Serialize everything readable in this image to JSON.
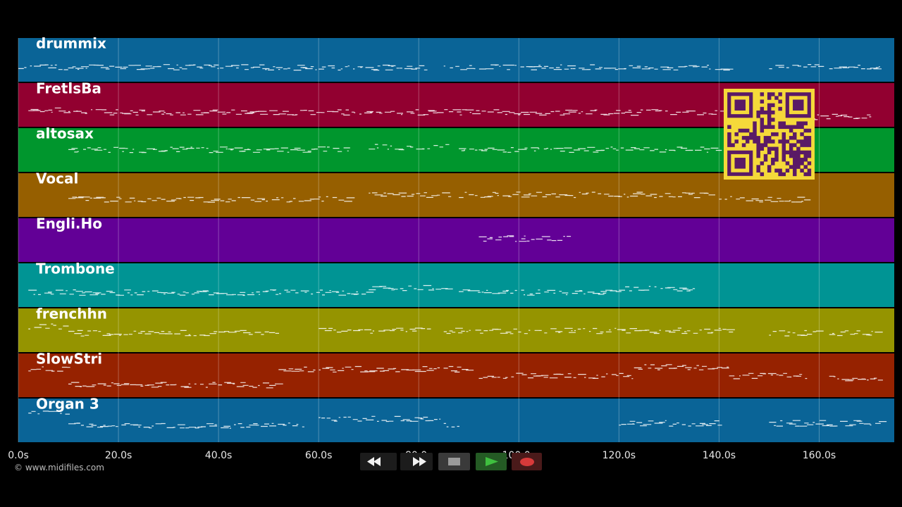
{
  "tracks": [
    {
      "name": "drummix",
      "color": "#0a6497"
    },
    {
      "name": "FretlsBa",
      "color": "#920030"
    },
    {
      "name": "altosax",
      "color": "#00962d"
    },
    {
      "name": "Vocal",
      "color": "#965f00"
    },
    {
      "name": "Engli.Ho",
      "color": "#620096"
    },
    {
      "name": "Trombone",
      "color": "#009494"
    },
    {
      "name": "frenchhn",
      "color": "#959400"
    },
    {
      "name": "SlowStri",
      "color": "#962200"
    },
    {
      "name": "Organ 3",
      "color": "#0a6497"
    }
  ],
  "time_axis": {
    "unit": "s",
    "max_seconds": 175,
    "ticks": [
      "0.0s",
      "20.0s",
      "40.0s",
      "60.0s",
      "80.0s",
      "100.0s",
      "120.0s",
      "140.0s",
      "160.0s"
    ]
  },
  "copyright": "© www.midifiles.com",
  "transport": {
    "rewind": "rewind-icon",
    "forward": "fast-forward-icon",
    "stop": "stop-icon",
    "play": "play-icon",
    "record": "record-icon",
    "play_color": "#3fbf3f",
    "record_color": "#d83a3a"
  },
  "qr_code": {
    "foreground": "#5a1a66",
    "background": "#f5d93a"
  }
}
